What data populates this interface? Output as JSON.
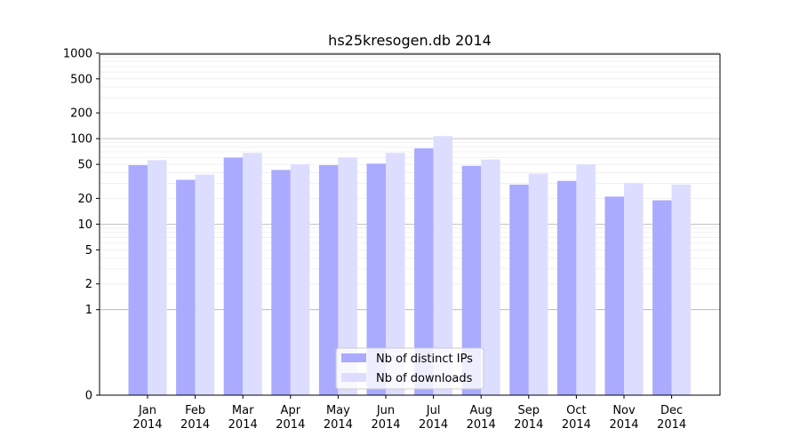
{
  "chart_data": {
    "type": "bar",
    "title": "hs25kresogen.db 2014",
    "xlabel": "",
    "ylabel": "",
    "yscale": "symlog",
    "ylim": [
      0,
      1300
    ],
    "y_ticks": [
      0,
      1,
      2,
      5,
      10,
      20,
      50,
      100,
      200,
      500,
      1000
    ],
    "grid": "y (major and minor)",
    "legend_position": "lower center",
    "categories": [
      [
        "Jan",
        "2014"
      ],
      [
        "Feb",
        "2014"
      ],
      [
        "Mar",
        "2014"
      ],
      [
        "Apr",
        "2014"
      ],
      [
        "May",
        "2014"
      ],
      [
        "Jun",
        "2014"
      ],
      [
        "Jul",
        "2014"
      ],
      [
        "Aug",
        "2014"
      ],
      [
        "Sep",
        "2014"
      ],
      [
        "Oct",
        "2014"
      ],
      [
        "Nov",
        "2014"
      ],
      [
        "Dec",
        "2014"
      ]
    ],
    "series": [
      {
        "name": "Nb of distinct IPs",
        "color": "#aaaaff",
        "values": [
          49,
          33,
          60,
          43,
          49,
          51,
          77,
          48,
          29,
          32,
          21,
          19
        ]
      },
      {
        "name": "Nb of downloads",
        "color": "#ddddff",
        "values": [
          56,
          38,
          68,
          50,
          60,
          68,
          107,
          57,
          39,
          50,
          30,
          29
        ]
      }
    ]
  }
}
